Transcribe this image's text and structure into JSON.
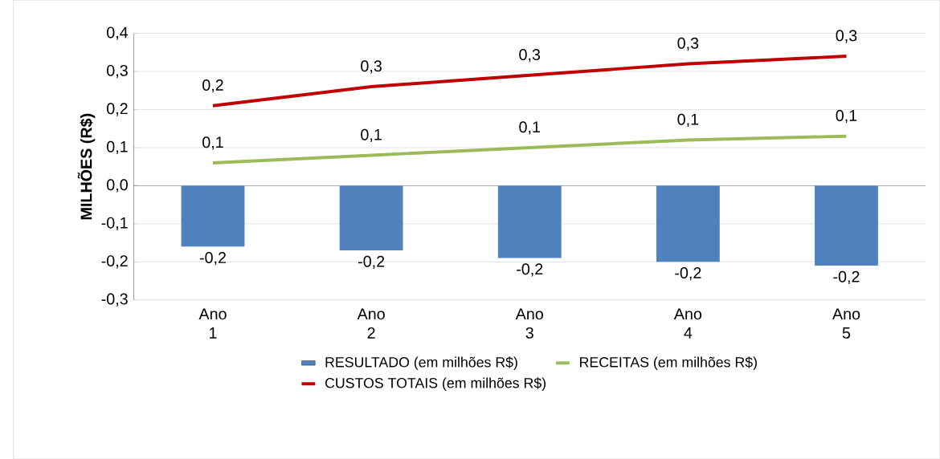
{
  "chart_data": {
    "type": "bar",
    "ylabel": "MILHÕES (R$)",
    "categories": [
      "Ano 1",
      "Ano 2",
      "Ano 3",
      "Ano 4",
      "Ano 5"
    ],
    "series": [
      {
        "name": "RESULTADO (em milhões R$)",
        "color": "#4f81bd",
        "values": [
          -0.16,
          -0.17,
          -0.19,
          -0.2,
          -0.21
        ],
        "value_labels": [
          "-0,2",
          "-0,2",
          "-0,2",
          "-0,2",
          "-0,2"
        ]
      },
      {
        "name": "RECEITAS (em milhões R$)",
        "type": "line",
        "color": "#9bbb59",
        "values": [
          0.06,
          0.08,
          0.1,
          0.12,
          0.13
        ],
        "value_labels": [
          "0,1",
          "0,1",
          "0,1",
          "0,1",
          "0,1"
        ]
      },
      {
        "name": "CUSTOS TOTAIS (em milhões R$)",
        "type": "line",
        "color": "#c00000",
        "values": [
          0.21,
          0.26,
          0.29,
          0.32,
          0.34
        ],
        "value_labels": [
          "0,2",
          "0,3",
          "0,3",
          "0,3",
          "0,3"
        ]
      }
    ],
    "ylim": [
      -0.3,
      0.4
    ],
    "yticks": [
      {
        "value": -0.3,
        "label": "-0,3"
      },
      {
        "value": -0.2,
        "label": "-0,2"
      },
      {
        "value": -0.1,
        "label": "-0,1"
      },
      {
        "value": 0,
        "label": "0,0"
      },
      {
        "value": 0.1,
        "label": "0,1"
      },
      {
        "value": 0.2,
        "label": "0,2"
      },
      {
        "value": 0.3,
        "label": "0,3"
      },
      {
        "value": 0.4,
        "label": "0,4"
      }
    ],
    "grid": "y",
    "legend": "bottom",
    "marker": "none"
  }
}
